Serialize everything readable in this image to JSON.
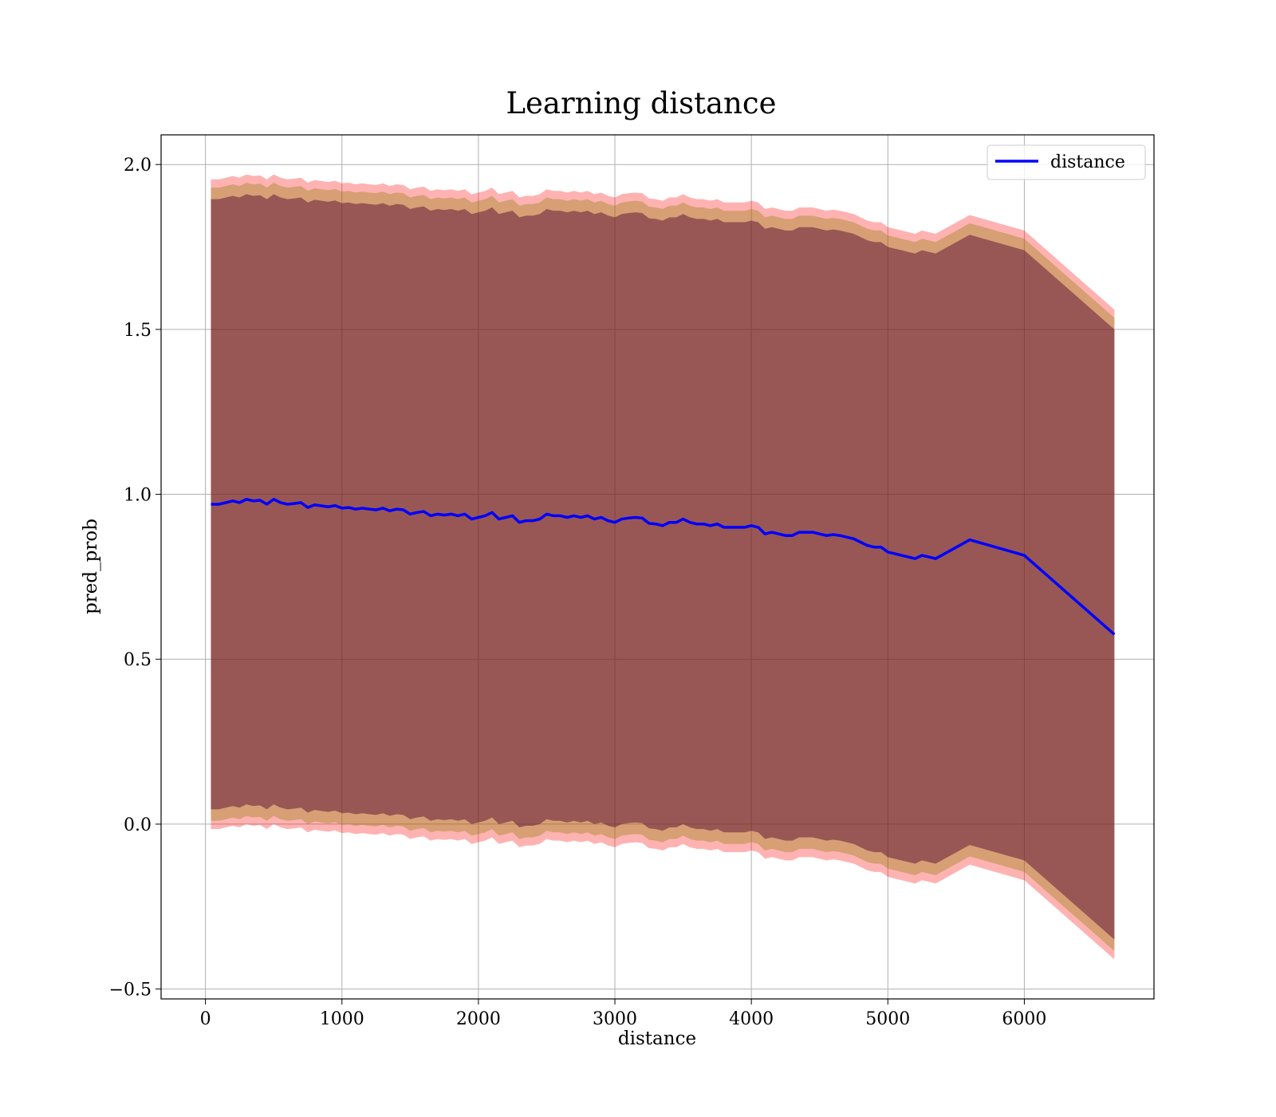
{
  "chart_data": {
    "type": "line",
    "title": "Learning distance",
    "xlabel": "distance",
    "ylabel": "pred_prob",
    "xlim": [
      -325,
      6950
    ],
    "ylim": [
      -0.53,
      2.09
    ],
    "x_ticks": [
      0,
      1000,
      2000,
      3000,
      4000,
      5000,
      6000
    ],
    "y_ticks": [
      -0.5,
      0.0,
      0.5,
      1.0,
      1.5,
      2.0
    ],
    "x_tick_labels": [
      "0",
      "1000",
      "2000",
      "3000",
      "4000",
      "5000",
      "6000"
    ],
    "y_tick_labels": [
      "−0.5",
      "0.0",
      "0.5",
      "1.0",
      "1.5",
      "2.0"
    ],
    "grid": true,
    "legend": {
      "position": "top-right",
      "entries": [
        "distance"
      ]
    },
    "colors": {
      "line": "#0000ff",
      "band_outer": "#ff0000",
      "band_middle": "#8b7a00",
      "band_inner": "#4b0030"
    },
    "series": [
      {
        "name": "distance",
        "x": [
          40,
          100,
          150,
          200,
          250,
          300,
          350,
          400,
          450,
          500,
          550,
          600,
          650,
          700,
          750,
          800,
          850,
          900,
          950,
          1000,
          1050,
          1100,
          1150,
          1200,
          1250,
          1300,
          1350,
          1400,
          1450,
          1500,
          1550,
          1600,
          1650,
          1700,
          1750,
          1800,
          1850,
          1900,
          1950,
          2000,
          2050,
          2100,
          2150,
          2200,
          2250,
          2300,
          2350,
          2400,
          2450,
          2500,
          2550,
          2600,
          2650,
          2700,
          2750,
          2800,
          2850,
          2900,
          2950,
          3000,
          3050,
          3100,
          3150,
          3200,
          3250,
          3300,
          3350,
          3400,
          3450,
          3500,
          3550,
          3600,
          3650,
          3700,
          3750,
          3800,
          3850,
          3900,
          3950,
          4000,
          4050,
          4100,
          4150,
          4200,
          4250,
          4300,
          4350,
          4400,
          4450,
          4500,
          4550,
          4600,
          4650,
          4700,
          4750,
          4800,
          4850,
          4900,
          4950,
          5000,
          5050,
          5100,
          5150,
          5200,
          5250,
          5300,
          5350,
          5600,
          6000,
          6660
        ],
        "values": [
          0.97,
          0.97,
          0.975,
          0.98,
          0.975,
          0.985,
          0.98,
          0.982,
          0.97,
          0.985,
          0.975,
          0.97,
          0.972,
          0.975,
          0.96,
          0.968,
          0.965,
          0.962,
          0.966,
          0.958,
          0.96,
          0.955,
          0.958,
          0.955,
          0.953,
          0.958,
          0.95,
          0.955,
          0.953,
          0.94,
          0.945,
          0.948,
          0.935,
          0.94,
          0.937,
          0.94,
          0.935,
          0.94,
          0.925,
          0.93,
          0.935,
          0.945,
          0.925,
          0.93,
          0.935,
          0.915,
          0.92,
          0.92,
          0.925,
          0.94,
          0.935,
          0.935,
          0.93,
          0.935,
          0.93,
          0.935,
          0.925,
          0.93,
          0.92,
          0.915,
          0.925,
          0.928,
          0.93,
          0.928,
          0.912,
          0.91,
          0.905,
          0.915,
          0.915,
          0.925,
          0.915,
          0.91,
          0.91,
          0.905,
          0.91,
          0.9,
          0.9,
          0.9,
          0.9,
          0.905,
          0.9,
          0.88,
          0.885,
          0.88,
          0.875,
          0.875,
          0.885,
          0.885,
          0.885,
          0.88,
          0.875,
          0.878,
          0.875,
          0.87,
          0.865,
          0.855,
          0.845,
          0.84,
          0.84,
          0.825,
          0.82,
          0.815,
          0.81,
          0.805,
          0.815,
          0.81,
          0.805,
          0.862,
          0.815,
          0.575
        ]
      }
    ],
    "bands": [
      {
        "layer": "outer",
        "half_width": [
          0.985,
          0.985,
          0.985,
          0.985,
          0.985,
          0.985,
          0.985,
          0.985,
          0.985,
          0.985,
          0.985,
          0.985,
          0.985,
          0.985,
          0.985,
          0.985,
          0.985,
          0.985,
          0.985,
          0.985,
          0.985,
          0.985,
          0.985,
          0.985,
          0.985,
          0.985,
          0.985,
          0.985,
          0.985,
          0.985,
          0.985,
          0.985,
          0.985,
          0.985,
          0.985,
          0.985,
          0.985,
          0.985,
          0.985,
          0.985,
          0.985,
          0.985,
          0.985,
          0.985,
          0.985,
          0.985,
          0.985,
          0.985,
          0.985,
          0.985,
          0.985,
          0.985,
          0.985,
          0.985,
          0.985,
          0.985,
          0.985,
          0.985,
          0.985,
          0.985,
          0.985,
          0.985,
          0.985,
          0.985,
          0.985,
          0.985,
          0.985,
          0.985,
          0.985,
          0.985,
          0.985,
          0.985,
          0.985,
          0.985,
          0.985,
          0.985,
          0.985,
          0.985,
          0.985,
          0.985,
          0.985,
          0.985,
          0.985,
          0.985,
          0.985,
          0.985,
          0.985,
          0.985,
          0.985,
          0.985,
          0.985,
          0.985,
          0.985,
          0.985,
          0.985,
          0.985,
          0.985,
          0.985,
          0.985,
          0.985,
          0.985,
          0.985,
          0.985,
          0.985,
          0.985,
          0.985,
          0.985,
          0.985,
          0.985,
          0.985
        ]
      },
      {
        "layer": "middle",
        "half_width": [
          0.96,
          0.96,
          0.96,
          0.96,
          0.96,
          0.96,
          0.96,
          0.96,
          0.96,
          0.96,
          0.96,
          0.96,
          0.96,
          0.96,
          0.96,
          0.96,
          0.96,
          0.96,
          0.96,
          0.96,
          0.96,
          0.96,
          0.96,
          0.96,
          0.96,
          0.96,
          0.96,
          0.96,
          0.96,
          0.96,
          0.96,
          0.96,
          0.96,
          0.96,
          0.96,
          0.96,
          0.96,
          0.96,
          0.96,
          0.96,
          0.96,
          0.96,
          0.96,
          0.96,
          0.96,
          0.96,
          0.96,
          0.96,
          0.96,
          0.96,
          0.96,
          0.96,
          0.96,
          0.96,
          0.96,
          0.96,
          0.96,
          0.96,
          0.96,
          0.96,
          0.96,
          0.96,
          0.96,
          0.96,
          0.96,
          0.96,
          0.96,
          0.96,
          0.96,
          0.96,
          0.96,
          0.96,
          0.96,
          0.96,
          0.96,
          0.96,
          0.96,
          0.96,
          0.96,
          0.96,
          0.96,
          0.96,
          0.96,
          0.96,
          0.96,
          0.96,
          0.96,
          0.96,
          0.96,
          0.96,
          0.96,
          0.96,
          0.96,
          0.96,
          0.96,
          0.96,
          0.96,
          0.96,
          0.96,
          0.96,
          0.96,
          0.96,
          0.96,
          0.96,
          0.96,
          0.96,
          0.96,
          0.96,
          0.96,
          0.96
        ]
      },
      {
        "layer": "inner",
        "half_width": [
          0.925,
          0.925,
          0.925,
          0.925,
          0.925,
          0.925,
          0.925,
          0.925,
          0.925,
          0.925,
          0.925,
          0.925,
          0.925,
          0.925,
          0.925,
          0.925,
          0.925,
          0.925,
          0.925,
          0.925,
          0.925,
          0.925,
          0.925,
          0.925,
          0.925,
          0.925,
          0.925,
          0.925,
          0.925,
          0.925,
          0.925,
          0.925,
          0.925,
          0.925,
          0.925,
          0.925,
          0.925,
          0.925,
          0.925,
          0.925,
          0.925,
          0.925,
          0.925,
          0.925,
          0.925,
          0.925,
          0.925,
          0.925,
          0.925,
          0.925,
          0.925,
          0.925,
          0.925,
          0.925,
          0.925,
          0.925,
          0.925,
          0.925,
          0.925,
          0.925,
          0.925,
          0.925,
          0.925,
          0.925,
          0.925,
          0.925,
          0.925,
          0.925,
          0.925,
          0.925,
          0.925,
          0.925,
          0.925,
          0.925,
          0.925,
          0.925,
          0.925,
          0.925,
          0.925,
          0.925,
          0.925,
          0.925,
          0.925,
          0.925,
          0.925,
          0.925,
          0.925,
          0.925,
          0.925,
          0.925,
          0.925,
          0.925,
          0.925,
          0.925,
          0.925,
          0.925,
          0.925,
          0.925,
          0.925,
          0.925,
          0.925,
          0.925,
          0.925,
          0.925,
          0.925,
          0.925,
          0.925,
          0.925,
          0.925,
          0.925
        ]
      }
    ]
  }
}
